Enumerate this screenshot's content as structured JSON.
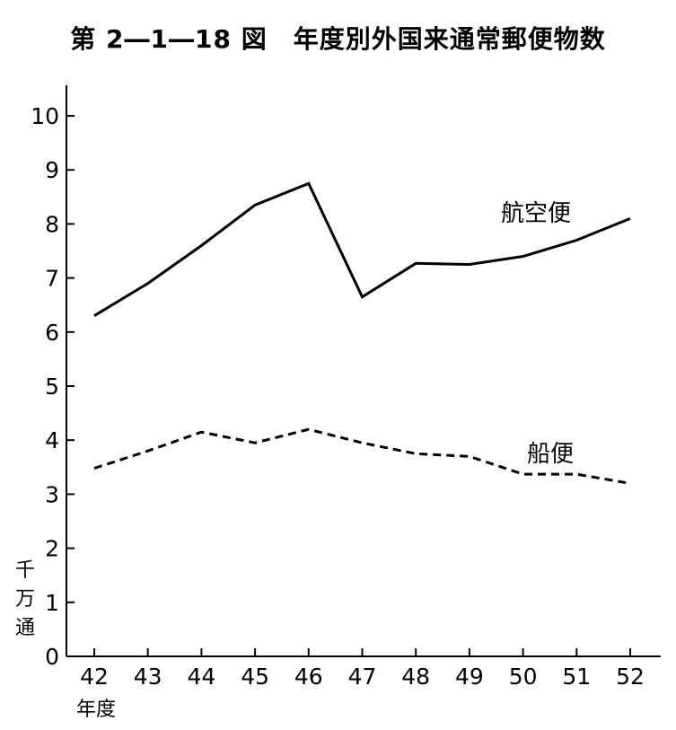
{
  "chart_data": {
    "type": "line",
    "title": "第 2―1―18 図　年度別外国来通常郵便物数",
    "xlabel": "年度",
    "ylabel": "千万通",
    "categories": [
      "42",
      "43",
      "44",
      "45",
      "46",
      "47",
      "48",
      "49",
      "50",
      "51",
      "52"
    ],
    "yticks": [
      "0",
      "1",
      "2",
      "3",
      "4",
      "5",
      "6",
      "7",
      "8",
      "9",
      "10"
    ],
    "ylim": [
      0,
      10.5
    ],
    "grid": false,
    "series": [
      {
        "name": "航空便",
        "style": "solid",
        "color": "#000000",
        "values": [
          6.3,
          6.9,
          7.6,
          8.35,
          8.75,
          6.65,
          7.27,
          7.25,
          7.4,
          7.7,
          8.1
        ]
      },
      {
        "name": "船便",
        "style": "dashed",
        "color": "#000000",
        "values": [
          3.48,
          3.8,
          4.15,
          3.95,
          4.2,
          3.95,
          3.75,
          3.7,
          3.37,
          3.37,
          3.2
        ]
      }
    ]
  }
}
